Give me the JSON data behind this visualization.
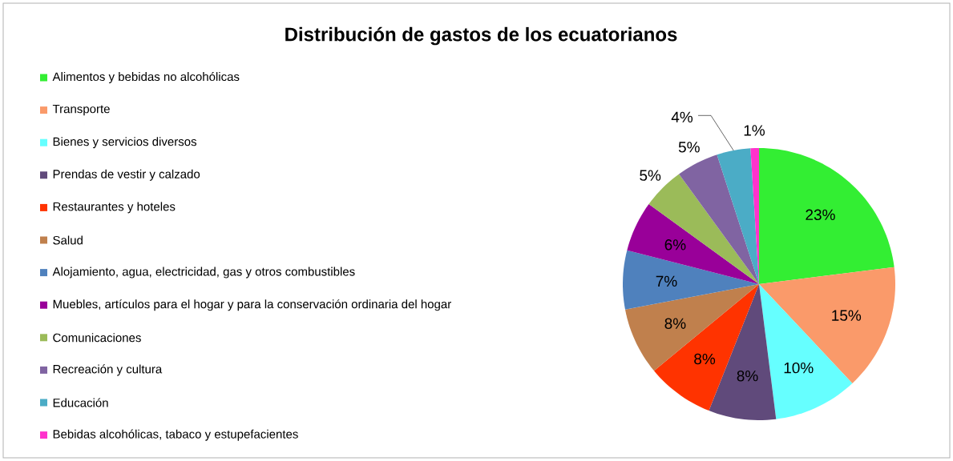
{
  "chart_data": {
    "type": "pie",
    "title": "Distribución de gastos de los ecuatorianos",
    "categories": [
      "Alimentos y bebidas no alcohólicas",
      "Transporte",
      "Bienes y servicios diversos",
      "Prendas de vestir y calzado",
      "Restaurantes y hoteles",
      "Salud",
      "Alojamiento, agua, electricidad, gas y otros combustibles",
      "Muebles, artículos para el hogar y para la conservación ordinaria del hogar",
      "Comunicaciones",
      "Recreación y cultura",
      "Educación",
      "Bebidas alcohólicas, tabaco y estupefacientes"
    ],
    "values": [
      23,
      15,
      10,
      8,
      8,
      8,
      7,
      6,
      5,
      5,
      4,
      1
    ],
    "colors": [
      "#33ee33",
      "#fa9a6a",
      "#66ffff",
      "#604a7b",
      "#ff3300",
      "#c0804d",
      "#4f81bd",
      "#990099",
      "#9bbb59",
      "#8064a2",
      "#4bacc6",
      "#ff33cc"
    ],
    "value_labels": [
      "23%",
      "15%",
      "10%",
      "8%",
      "8%",
      "8%",
      "7%",
      "6%",
      "5%",
      "5%",
      "4%",
      "1%"
    ],
    "legend": "left"
  }
}
